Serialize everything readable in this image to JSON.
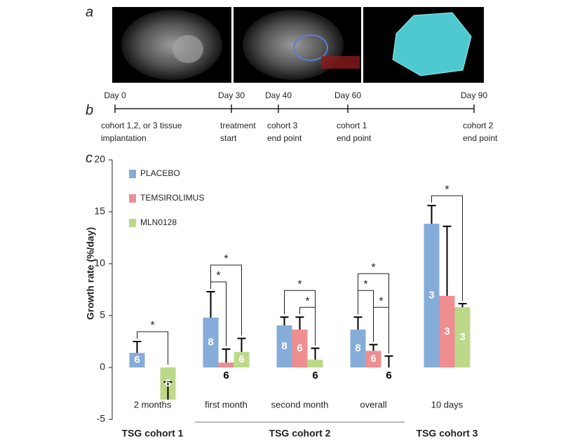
{
  "panel_labels": [
    "a",
    "b",
    "c"
  ],
  "timeline": {
    "events": [
      {
        "day": "Day 0",
        "note": [
          "cohort 1,2, or 3 tissue",
          "implantation"
        ]
      },
      {
        "day": "Day 30",
        "note": [
          "treatment",
          "start"
        ]
      },
      {
        "day": "Day 40",
        "note": [
          "cohort 3",
          "end point"
        ]
      },
      {
        "day": "Day 60",
        "note": [
          "cohort 1",
          "end point"
        ]
      },
      {
        "day": "Day 90",
        "note": [
          "cohort 2",
          "end point"
        ]
      }
    ]
  },
  "chart_data": {
    "type": "bar",
    "y_label": "Growth rate (%/day)",
    "categories": [
      "2 months",
      "first month",
      "second month",
      "overall",
      "10 days"
    ],
    "groups": [
      {
        "label": "TSG cohort 1",
        "categories": [
          0,
          0
        ]
      },
      {
        "label": "TSG cohort 2",
        "categories": [
          1,
          3
        ]
      },
      {
        "label": "TSG cohort 3",
        "categories": [
          4,
          4
        ]
      }
    ],
    "series": [
      {
        "name": "PLACEBO",
        "color": "#86acd9",
        "values": [
          1.4,
          4.8,
          4.05,
          3.65,
          13.85
        ],
        "errors": [
          1.1,
          2.5,
          0.8,
          1.2,
          1.75
        ],
        "n": [
          "6",
          "8",
          "8",
          "8",
          "3"
        ]
      },
      {
        "name": "TEMSIROLIMUS",
        "color": "#ee8e90",
        "values": [
          null,
          0.47,
          3.65,
          1.6,
          6.9
        ],
        "errors": [
          null,
          1.3,
          1.2,
          0.6,
          6.7
        ],
        "n": [
          null,
          "6",
          "6",
          "6",
          "3"
        ]
      },
      {
        "name": "MLN0128",
        "color": "#bcd98a",
        "values": [
          -3.1,
          1.5,
          0.75,
          0,
          5.8
        ],
        "errors": [
          1.7,
          1.3,
          1.1,
          1.1,
          0.35
        ],
        "n": [
          "6",
          "6",
          "6",
          "6",
          "3"
        ]
      }
    ],
    "significance": [
      {
        "category": 0,
        "series": [
          0,
          2
        ],
        "label": "*"
      },
      {
        "category": 1,
        "series": [
          0,
          1
        ],
        "label": "*"
      },
      {
        "category": 1,
        "series": [
          0,
          2
        ],
        "label": "*"
      },
      {
        "category": 2,
        "series": [
          1,
          2
        ],
        "label": "*"
      },
      {
        "category": 2,
        "series": [
          0,
          2
        ],
        "label": "*"
      },
      {
        "category": 3,
        "series": [
          1,
          2
        ],
        "label": "*"
      },
      {
        "category": 3,
        "series": [
          0,
          1
        ],
        "label": "*"
      },
      {
        "category": 3,
        "series": [
          0,
          2
        ],
        "label": "*"
      },
      {
        "category": 4,
        "series": [
          0,
          2
        ],
        "label": "*"
      }
    ],
    "ylim": [
      -5,
      20
    ],
    "yticks": [
      -5,
      0,
      5,
      10,
      15,
      20
    ],
    "grid": false,
    "legend": "top-left"
  }
}
